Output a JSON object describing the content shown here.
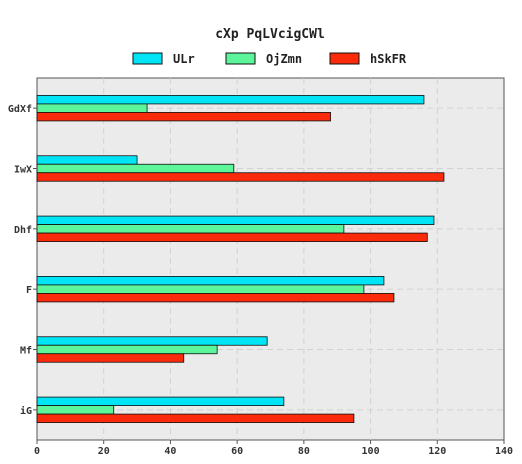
{
  "chart_data": {
    "type": "bar",
    "orientation": "horizontal",
    "title": "cXp PqLVcigCWl",
    "categories": [
      "GdXf",
      "IwX",
      "Dhf",
      "F",
      "Mf",
      "iG"
    ],
    "series": [
      {
        "name": "ULr",
        "color": "#00e5f5",
        "values": [
          116,
          30,
          119,
          104,
          69,
          74
        ]
      },
      {
        "name": "OjZmn",
        "color": "#5cf59a",
        "values": [
          33,
          59,
          92,
          98,
          54,
          23
        ]
      },
      {
        "name": "hSkFR",
        "color": "#fa2a0a",
        "values": [
          88,
          122,
          117,
          107,
          44,
          95
        ]
      }
    ],
    "xlim": [
      0,
      140
    ],
    "xticks": [
      0,
      20,
      40,
      60,
      80,
      100,
      120,
      140
    ],
    "grid": true,
    "legend_position": "top"
  }
}
